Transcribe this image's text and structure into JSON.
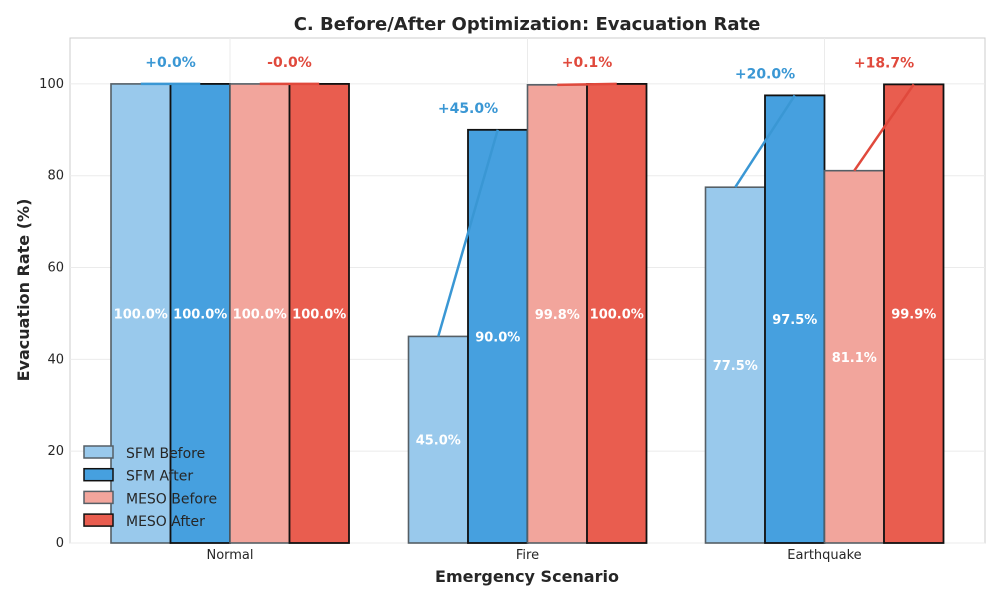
{
  "chart_data": {
    "type": "bar",
    "title": "C. Before/After Optimization: Evacuation Rate",
    "xlabel": "Emergency Scenario",
    "ylabel": "Evacuation Rate (%)",
    "ylim": [
      0,
      110
    ],
    "yticks": [
      0,
      20,
      40,
      60,
      80,
      100
    ],
    "grid": true,
    "legend_position": "lower-left",
    "categories": [
      "Normal",
      "Fire",
      "Earthquake"
    ],
    "series": [
      {
        "name": "SFM Before",
        "values": [
          100.0,
          45.0,
          77.5
        ],
        "labels": [
          "100.0%",
          "45.0%",
          "77.5%"
        ],
        "color": "#99c9ec"
      },
      {
        "name": "SFM After",
        "values": [
          100.0,
          90.0,
          97.5
        ],
        "labels": [
          "100.0%",
          "90.0%",
          "97.5%"
        ],
        "color": "#46a0df"
      },
      {
        "name": "MESO Before",
        "values": [
          100.0,
          99.8,
          81.1
        ],
        "labels": [
          "100.0%",
          "99.8%",
          "81.1%"
        ],
        "color": "#f2a59c"
      },
      {
        "name": "MESO After",
        "values": [
          100.0,
          100.0,
          99.9
        ],
        "labels": [
          "100.0%",
          "100.0%",
          "99.9%"
        ],
        "color": "#e95d4f"
      }
    ],
    "improvements": [
      {
        "model": "SFM",
        "from_series": 0,
        "to_series": 1,
        "color": "#3a97d4",
        "labels": [
          "+0.0%",
          "+45.0%",
          "+20.0%"
        ]
      },
      {
        "model": "MESO",
        "from_series": 2,
        "to_series": 3,
        "color": "#e0493c",
        "labels": [
          "-0.0%",
          "+0.1%",
          "+18.7%"
        ]
      }
    ]
  }
}
